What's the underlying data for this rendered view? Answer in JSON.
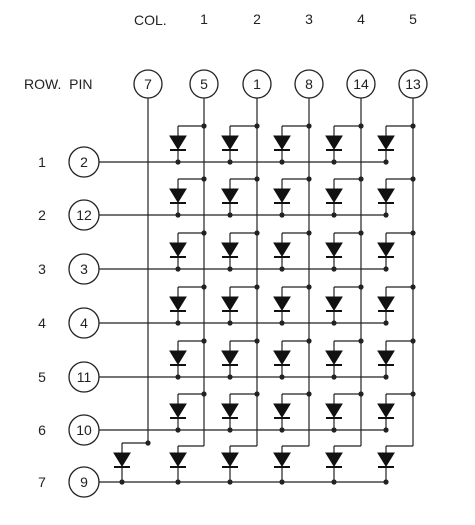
{
  "header": {
    "col_label": "COL.",
    "row_pin_label": "ROW.  PIN",
    "columns": [
      "1",
      "2",
      "3",
      "4",
      "5"
    ],
    "column_pins": [
      "5",
      "1",
      "8",
      "14",
      "13"
    ],
    "extra_column_pin": "7"
  },
  "rows": [
    {
      "label": "1",
      "pin": "2"
    },
    {
      "label": "2",
      "pin": "12"
    },
    {
      "label": "3",
      "pin": "3"
    },
    {
      "label": "4",
      "pin": "4"
    },
    {
      "label": "5",
      "pin": "11"
    },
    {
      "label": "6",
      "pin": "10"
    },
    {
      "label": "7",
      "pin": "9"
    }
  ],
  "colors": {
    "line": "#222222",
    "diode": "#111111",
    "background": "#ffffff"
  }
}
